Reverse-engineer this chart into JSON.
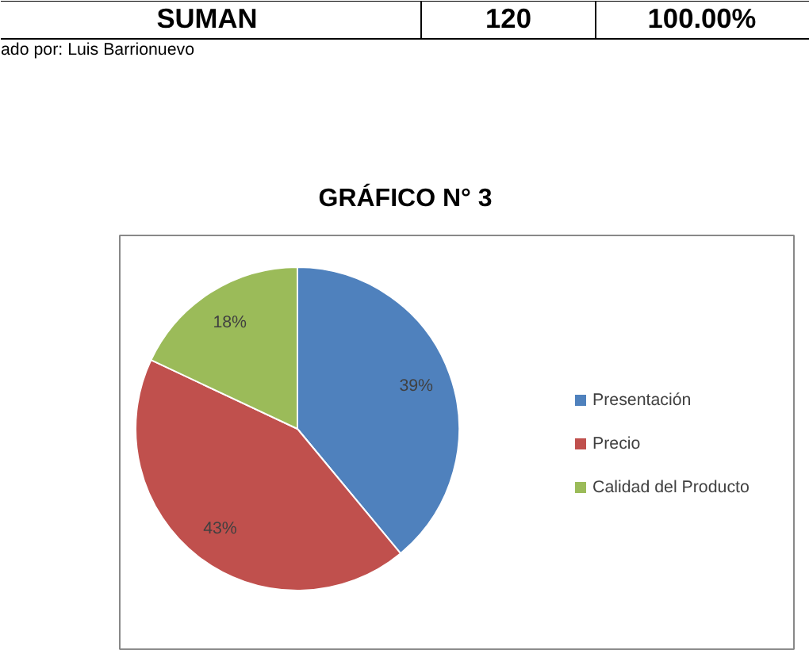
{
  "chart_data": {
    "type": "pie",
    "title": "GRÁFICO N° 3",
    "categories": [
      "Presentación",
      "Precio",
      "Calidad del Producto"
    ],
    "values": [
      39,
      43,
      18
    ],
    "value_labels": [
      "39%",
      "43%",
      "18%"
    ],
    "colors": [
      "#4f81bd",
      "#c0504d",
      "#9bbb59"
    ],
    "legend": "right",
    "annotations": [
      "SUMAN",
      "120",
      "100.00%",
      "ado por: Luis Barrionuevo"
    ]
  }
}
